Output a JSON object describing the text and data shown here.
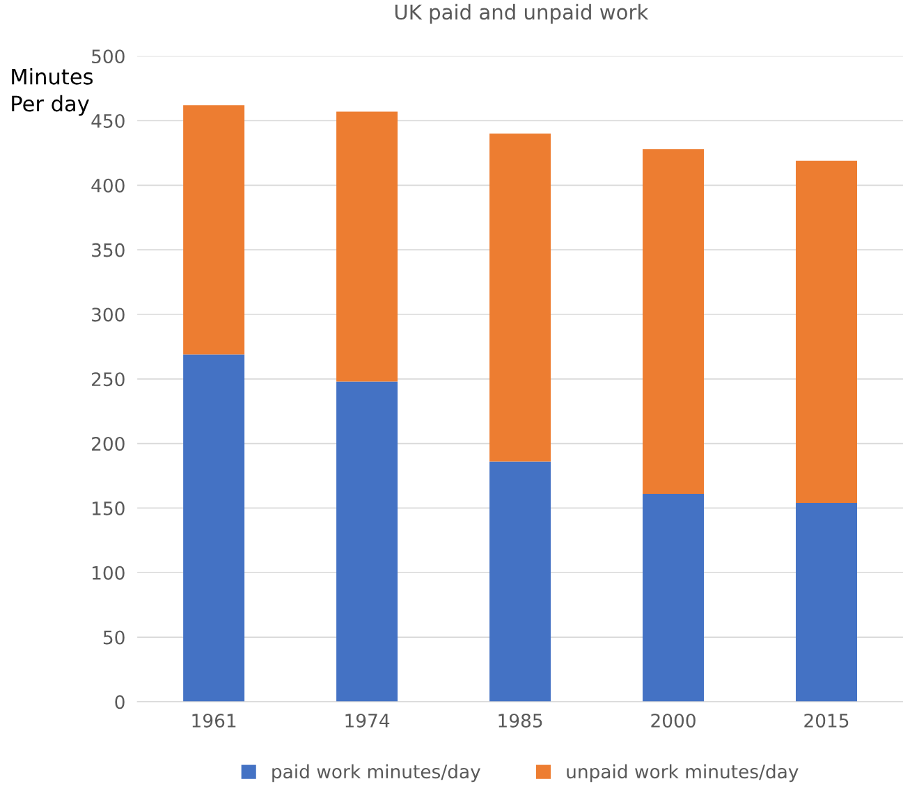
{
  "chart_data": {
    "type": "bar",
    "title": "UK paid and unpaid work",
    "ylabel": "Minutes\nPer day",
    "categories": [
      "1961",
      "1974",
      "1985",
      "2000",
      "2015"
    ],
    "stacked": true,
    "series": [
      {
        "name": "paid work minutes/day",
        "color": "#4472c4",
        "values": [
          269,
          248,
          186,
          161,
          154
        ]
      },
      {
        "name": "unpaid work minutes/day",
        "color": "#ed7d31",
        "values": [
          193,
          209,
          254,
          267,
          265
        ]
      }
    ],
    "ylim": [
      0,
      500
    ],
    "yticks": [
      0,
      50,
      100,
      150,
      200,
      250,
      300,
      350,
      400,
      450,
      500
    ],
    "grid": "y",
    "legend": "bottom"
  }
}
